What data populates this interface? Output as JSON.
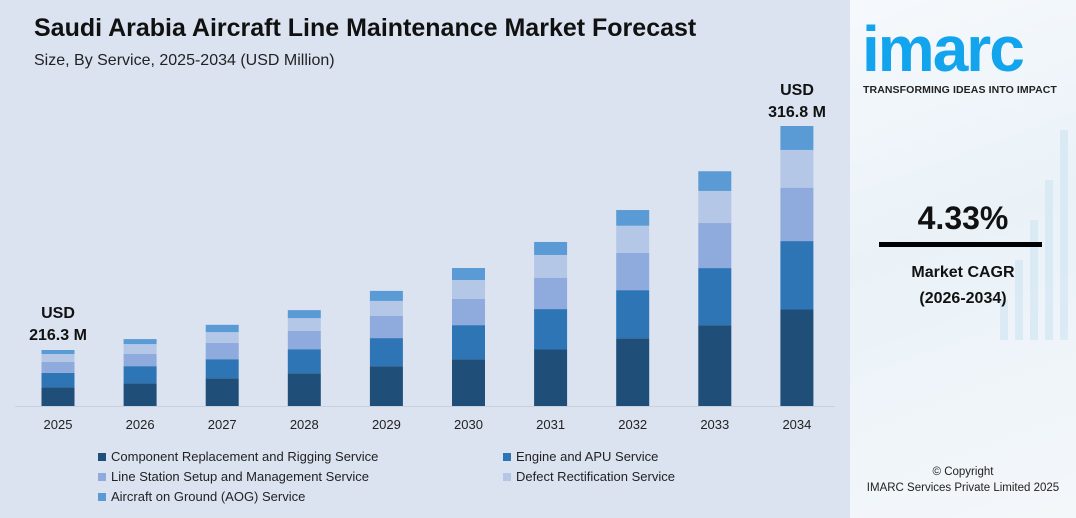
{
  "header": {
    "title": "Saudi Arabia Aircraft Line Maintenance Market Forecast",
    "subtitle": "Size, By Service, 2025-2034 (USD Million)"
  },
  "annotations": {
    "first": {
      "line1": "USD",
      "line2": "216.3 M"
    },
    "last": {
      "line1": "USD",
      "line2": "316.8 M"
    }
  },
  "chart_data": {
    "type": "bar",
    "stacked": true,
    "title": "Saudi Arabia Aircraft Line Maintenance Market Forecast",
    "subtitle": "Size, By Service, 2025-2034 (USD Million)",
    "xlabel": "",
    "ylabel": "",
    "grid": false,
    "legend_position": "bottom",
    "categories": [
      "2025",
      "2026",
      "2027",
      "2028",
      "2029",
      "2030",
      "2031",
      "2032",
      "2033",
      "2034"
    ],
    "totals": [
      216.3,
      221.2,
      227.6,
      234.2,
      242.8,
      253.1,
      264.8,
      279.1,
      296.5,
      316.8
    ],
    "series": [
      {
        "name": "Component Replacement and Rigging Service",
        "color": "#1f4e79",
        "values": [
          72.6,
          75.3,
          77.8,
          80.0,
          84.0,
          85.8,
          91.2,
          96.5,
          102.1,
          109.2
        ]
      },
      {
        "name": "Engine and APU Service",
        "color": "#2e75b6",
        "values": [
          55.5,
          56.4,
          53.4,
          58.7,
          59.3,
          62.5,
          65.2,
          68.5,
          72.1,
          77.4
        ]
      },
      {
        "name": "Line Station Setup and Management Service",
        "color": "#8faadc",
        "values": [
          42.7,
          40.8,
          45.8,
          44.8,
          46.6,
          48.3,
          50.6,
          53.2,
          56.9,
          60.4
        ]
      },
      {
        "name": "Defect Rectification Service",
        "color": "#b4c7e7",
        "values": [
          29.9,
          32.2,
          30.1,
          31.1,
          31.8,
          34.4,
          36.7,
          38.5,
          40.5,
          42.7
        ]
      },
      {
        "name": "Aircraft on Ground (AOG) Service",
        "color": "#5b9bd5",
        "values": [
          15.6,
          16.5,
          20.5,
          19.6,
          21.2,
          22.1,
          21.0,
          22.4,
          24.9,
          27.1
        ]
      }
    ]
  },
  "side": {
    "logo": "imarc",
    "tagline": "TRANSFORMING IDEAS INTO IMPACT",
    "cagr_value": "4.33%",
    "cagr_label": "Market CAGR",
    "cagr_period": "(2026-2034)",
    "copyright": "© Copyright",
    "company": "IMARC Services Private Limited 2025"
  }
}
